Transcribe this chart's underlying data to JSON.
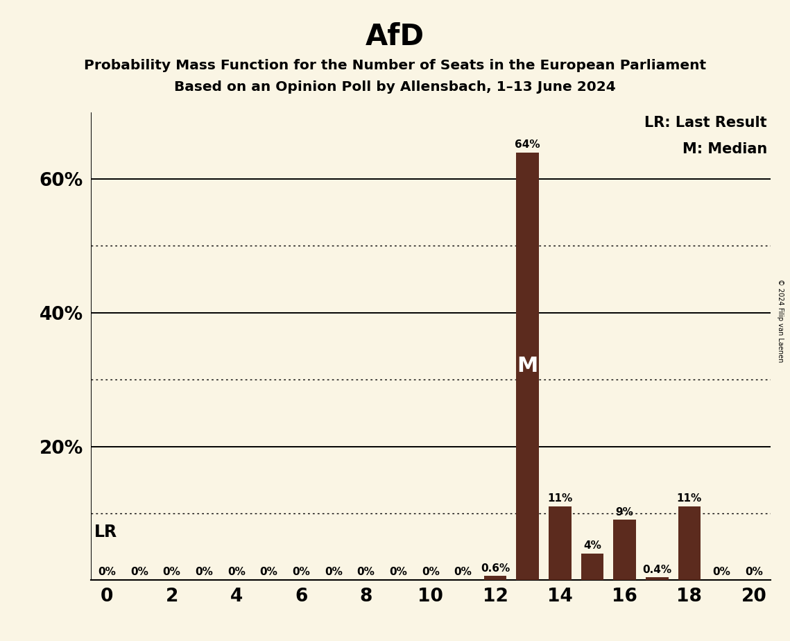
{
  "title": "AfD",
  "subtitle1": "Probability Mass Function for the Number of Seats in the European Parliament",
  "subtitle2": "Based on an Opinion Poll by Allensbach, 1–13 June 2024",
  "copyright": "© 2024 Filip van Laenen",
  "seats": [
    0,
    1,
    2,
    3,
    4,
    5,
    6,
    7,
    8,
    9,
    10,
    11,
    12,
    13,
    14,
    15,
    16,
    17,
    18,
    19,
    20
  ],
  "probabilities": [
    0.0,
    0.0,
    0.0,
    0.0,
    0.0,
    0.0,
    0.0,
    0.0,
    0.0,
    0.0,
    0.0,
    0.0,
    0.006,
    0.64,
    0.11,
    0.04,
    0.09,
    0.004,
    0.11,
    0.0,
    0.0
  ],
  "bar_color": "#5C2B1E",
  "background_color": "#FAF5E4",
  "text_color": "#1a1a1a",
  "median_seat": 13,
  "last_result_seat": 13,
  "legend_lr": "LR: Last Result",
  "legend_m": "M: Median",
  "ytick_positions": [
    0.2,
    0.4,
    0.6
  ],
  "ytick_labels": [
    "20%",
    "40%",
    "60%"
  ],
  "solid_lines": [
    0.0,
    0.2,
    0.4,
    0.6
  ],
  "dotted_lines": [
    0.1,
    0.3,
    0.5
  ],
  "xlim": [
    -0.5,
    20.5
  ],
  "ylim": [
    0,
    0.7
  ],
  "bar_width": 0.7,
  "prob_labels": [
    "0%",
    "0%",
    "0%",
    "0%",
    "0%",
    "0%",
    "0%",
    "0%",
    "0%",
    "0%",
    "0%",
    "0%",
    "0.6%",
    "64%",
    "11%",
    "4%",
    "9%",
    "0.4%",
    "11%",
    "0%",
    "0%"
  ]
}
